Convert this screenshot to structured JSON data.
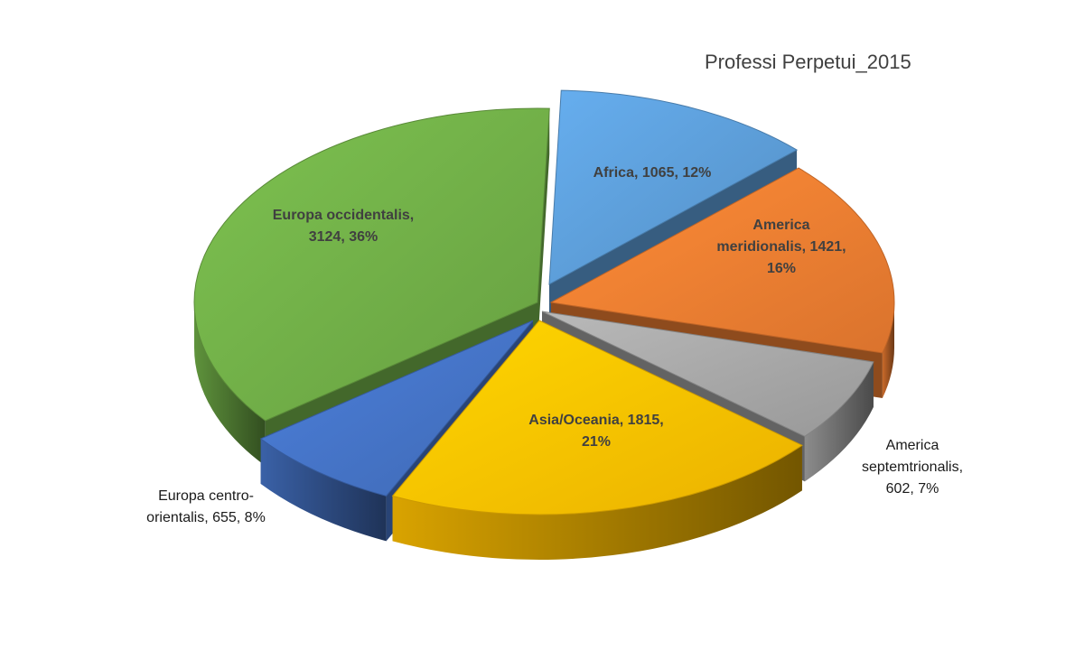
{
  "chart_data": {
    "type": "pie",
    "title": "Professi Perpetui_2015",
    "slices": [
      {
        "name": "Africa",
        "value": 1065,
        "percent": 12,
        "color": "#5b9bd5",
        "label_lines": [
          "Africa, 1065, 12%"
        ]
      },
      {
        "name": "America meridionalis",
        "value": 1421,
        "percent": 16,
        "color": "#ed7d31",
        "label_lines": [
          "America",
          "meridionalis, 1421,",
          "16%"
        ]
      },
      {
        "name": "America septemtrionalis",
        "value": 602,
        "percent": 7,
        "color": "#a5a5a5",
        "label_lines": [
          "America",
          "septemtrionalis,",
          "602, 7%"
        ]
      },
      {
        "name": "Asia/Oceania",
        "value": 1815,
        "percent": 21,
        "color": "#ffc000",
        "label_lines": [
          "Asia/Oceania, 1815,",
          "21%"
        ]
      },
      {
        "name": "Europa centro-orientalis",
        "value": 655,
        "percent": 8,
        "color": "#4472c4",
        "label_lines": [
          "Europa centro-",
          "orientalis, 655, 8%"
        ]
      },
      {
        "name": "Europa occidentalis",
        "value": 3124,
        "percent": 36,
        "color": "#70ad47",
        "label_lines": [
          "Europa occidentalis,",
          "3124, 36%"
        ]
      }
    ],
    "style": "3d-exploded"
  }
}
